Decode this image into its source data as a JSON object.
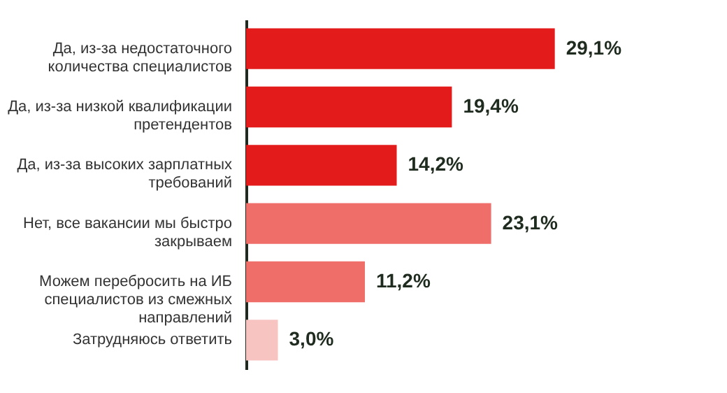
{
  "chart_data": {
    "type": "bar",
    "orientation": "horizontal",
    "data_labels": false,
    "categories": [
      "Да, из-за недостаточного количества специалистов",
      "Да, из-за низкой квалификации претендентов",
      "Да, из-за высоких зарплатных требований",
      "Нет, все вакансии мы быстро закрываем",
      "Можем перебросить на ИБ специалистов из смежных направлений",
      "Затрудняюсь ответить"
    ],
    "values": [
      29.1,
      19.4,
      14.2,
      23.1,
      11.2,
      3.0
    ],
    "value_labels": [
      "29,1%",
      "19,4%",
      "14,2%",
      "23,1%",
      "11,2%",
      "3,0%"
    ],
    "colors": [
      "#e31b1b",
      "#e31b1b",
      "#e31b1b",
      "#ef6e6a",
      "#ef6e6a",
      "#f7c4c2"
    ]
  }
}
